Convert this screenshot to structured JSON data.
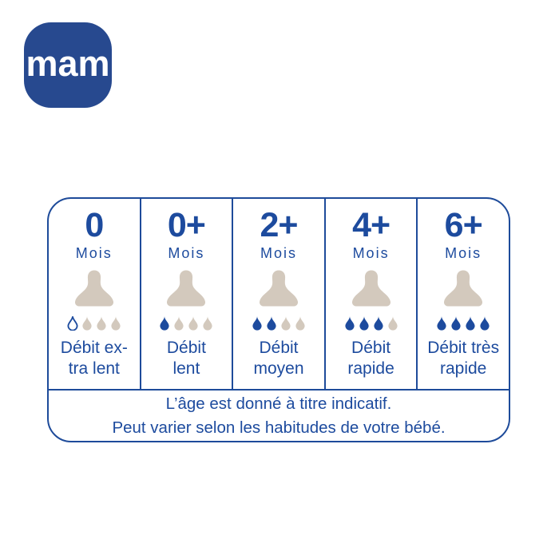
{
  "logo": {
    "text": "mam",
    "bg_color": "#27498f",
    "text_color": "#ffffff"
  },
  "colors": {
    "accent_blue": "#1d4b9e",
    "border_blue": "#1e4b9a",
    "teat_beige": "#d3c9bd",
    "background": "#ffffff"
  },
  "icons": {
    "teat": "bottle-teat-icon",
    "drop": "droplet-icon"
  },
  "table": {
    "columns": [
      {
        "age": "0",
        "unit": "Mois",
        "drops": [
          "outline",
          "empty",
          "empty",
          "empty"
        ],
        "label_line1": "Débit ex-",
        "label_line2": "tra lent"
      },
      {
        "age": "0+",
        "unit": "Mois",
        "drops": [
          "filled",
          "empty",
          "empty",
          "empty"
        ],
        "label_line1": "Débit",
        "label_line2": "lent"
      },
      {
        "age": "2+",
        "unit": "Mois",
        "drops": [
          "filled",
          "filled",
          "empty",
          "empty"
        ],
        "label_line1": "Débit",
        "label_line2": "moyen"
      },
      {
        "age": "4+",
        "unit": "Mois",
        "drops": [
          "filled",
          "filled",
          "filled",
          "empty"
        ],
        "label_line1": "Débit",
        "label_line2": "rapide"
      },
      {
        "age": "6+",
        "unit": "Mois",
        "drops": [
          "filled",
          "filled",
          "filled",
          "filled"
        ],
        "label_line1": "Débit très",
        "label_line2": "rapide"
      }
    ],
    "footnote_line1": "L’âge est donné à titre indicatif.",
    "footnote_line2": "Peut varier selon les habitudes de votre bébé."
  }
}
